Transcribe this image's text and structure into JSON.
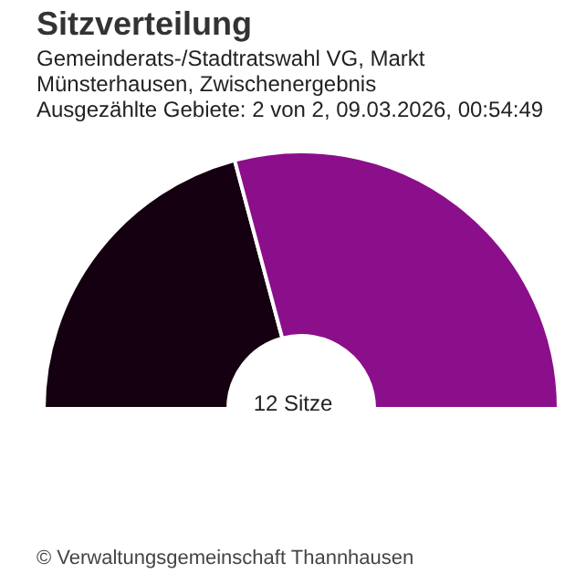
{
  "chart_data": {
    "type": "donut",
    "title": "Sitzverteilung",
    "subtitle": "Gemeinderats-/Stadtratswahl VG, Markt Münsterhausen, Zwischenergebnis",
    "annotations": [
      "Ausgezählte Gebiete: 2 von 2, 09.03.2026, 00:54:49",
      "12 Sitze",
      "© Verwaltungsgemeinschaft Thannhausen"
    ],
    "categories": [
      null,
      null
    ],
    "values": [
      41.67,
      58.33
    ],
    "colors": [
      "#140010",
      "#8b0e8b"
    ],
    "legend": false
  }
}
